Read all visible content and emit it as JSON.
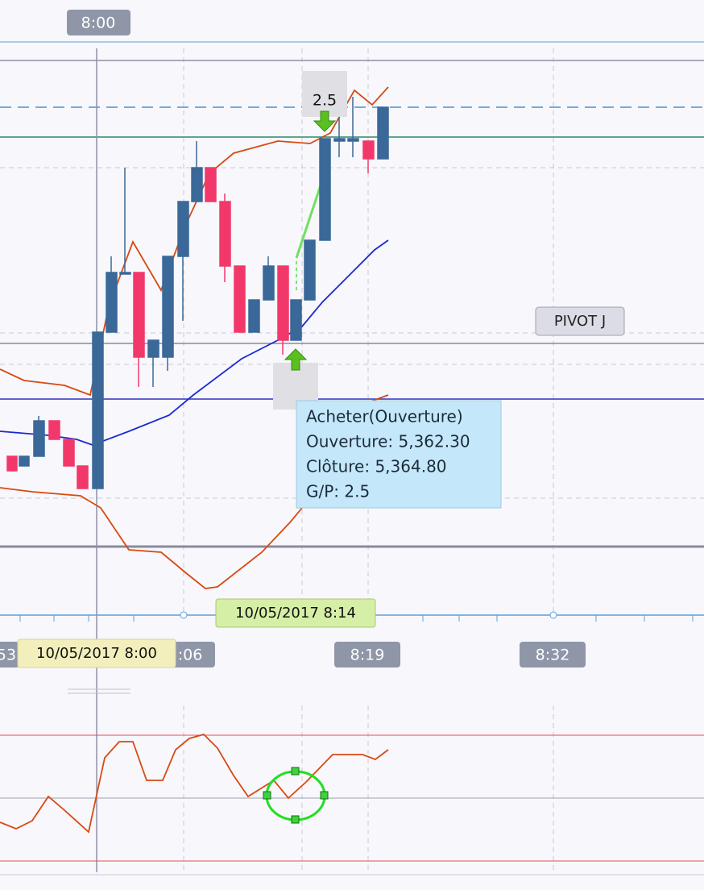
{
  "header_time": "8:00",
  "trade_label": "2.5",
  "pivot_label": "PIVOT J",
  "tooltip": {
    "lines": [
      "Acheter(Ouverture)",
      "Ouverture: 5,362.30",
      "Clôture: 5,364.80",
      "G/P: 2.5"
    ]
  },
  "crosshair_labels": {
    "cursor": "10/05/2017 8:14",
    "anchor": "10/05/2017 8:00"
  },
  "time_axis": {
    "labels": [
      "53",
      ":06",
      "8:19",
      "8:32"
    ]
  }
}
